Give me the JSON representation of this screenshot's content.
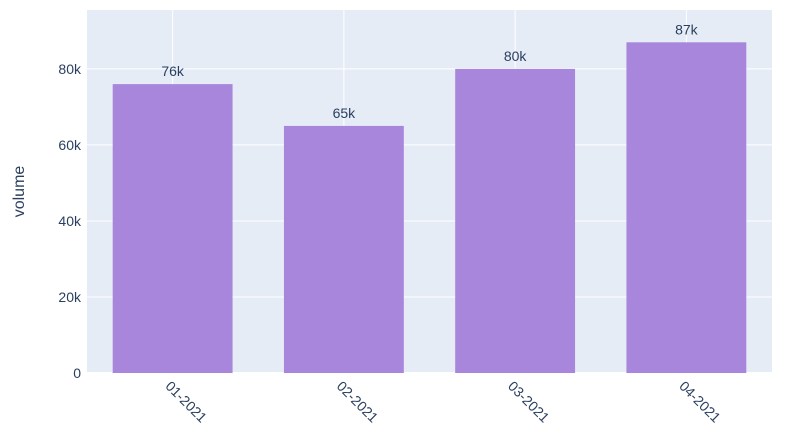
{
  "chart_data": {
    "type": "bar",
    "categories": [
      "01-2021",
      "02-2021",
      "03-2021",
      "04-2021"
    ],
    "values": [
      76000,
      65000,
      80000,
      87000
    ],
    "value_labels": [
      "76k",
      "65k",
      "80k",
      "87k"
    ],
    "ylabel": "volume",
    "xlabel": "",
    "ylim": [
      0,
      95500
    ],
    "yticks": [
      0,
      20000,
      40000,
      60000,
      80000
    ],
    "ytick_labels": [
      "0",
      "20k",
      "40k",
      "60k",
      "80k"
    ],
    "grid": true,
    "colors": {
      "bar": "#a786dc",
      "plot_bg": "#e5ecf6",
      "grid": "#ffffff",
      "text": "#2a3f5f"
    }
  }
}
